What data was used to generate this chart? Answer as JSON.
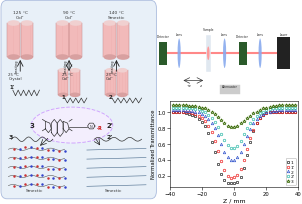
{
  "xlabel": "Z / mm",
  "ylabel": "Normalized Transmittance",
  "xlim": [
    -40,
    40
  ],
  "series": {
    "1": {
      "color": "#222222",
      "marker": "s",
      "label": "1",
      "z": [
        -38,
        -36,
        -34,
        -32,
        -30,
        -28,
        -26,
        -24,
        -22,
        -20,
        -18,
        -16,
        -14,
        -12,
        -10,
        -8,
        -6,
        -4,
        -2,
        0,
        2,
        4,
        6,
        8,
        10,
        12,
        14,
        16,
        18,
        20,
        22,
        24,
        26,
        28,
        30,
        32,
        34,
        36,
        38
      ],
      "T": [
        1.01,
        1.01,
        1.0,
        1.0,
        0.99,
        0.98,
        0.97,
        0.95,
        0.92,
        0.88,
        0.83,
        0.74,
        0.63,
        0.5,
        0.35,
        0.22,
        0.14,
        0.1,
        0.1,
        0.1,
        0.12,
        0.18,
        0.3,
        0.46,
        0.62,
        0.76,
        0.86,
        0.93,
        0.97,
        0.99,
        1.0,
        1.01,
        1.01,
        1.01,
        1.01,
        1.01,
        1.01,
        1.01,
        1.01
      ]
    },
    "1p": {
      "color": "#ee2222",
      "marker": "o",
      "label": "1'",
      "z": [
        -38,
        -36,
        -34,
        -32,
        -30,
        -28,
        -26,
        -24,
        -22,
        -20,
        -18,
        -16,
        -14,
        -12,
        -10,
        -8,
        -6,
        -4,
        -2,
        0,
        2,
        4,
        6,
        8,
        10,
        12,
        14,
        16,
        18,
        20,
        22,
        24,
        26,
        28,
        30,
        32,
        34,
        36,
        38
      ],
      "T": [
        1.01,
        1.01,
        1.01,
        1.01,
        1.0,
        1.0,
        0.99,
        0.98,
        0.96,
        0.93,
        0.89,
        0.83,
        0.75,
        0.64,
        0.51,
        0.38,
        0.27,
        0.2,
        0.17,
        0.18,
        0.21,
        0.28,
        0.4,
        0.54,
        0.67,
        0.78,
        0.87,
        0.93,
        0.97,
        0.99,
        1.0,
        1.01,
        1.01,
        1.01,
        1.01,
        1.01,
        1.01,
        1.01,
        1.01
      ]
    },
    "2": {
      "color": "#3355cc",
      "marker": "^",
      "label": "2",
      "z": [
        -38,
        -36,
        -34,
        -32,
        -30,
        -28,
        -26,
        -24,
        -22,
        -20,
        -18,
        -16,
        -14,
        -12,
        -10,
        -8,
        -6,
        -4,
        -2,
        0,
        2,
        4,
        6,
        8,
        10,
        12,
        14,
        16,
        18,
        20,
        22,
        24,
        26,
        28,
        30,
        32,
        34,
        36,
        38
      ],
      "T": [
        1.03,
        1.03,
        1.03,
        1.03,
        1.02,
        1.02,
        1.02,
        1.01,
        1.0,
        0.98,
        0.96,
        0.92,
        0.87,
        0.8,
        0.71,
        0.6,
        0.5,
        0.43,
        0.4,
        0.4,
        0.43,
        0.5,
        0.6,
        0.7,
        0.79,
        0.87,
        0.92,
        0.96,
        0.98,
        1.0,
        1.01,
        1.02,
        1.02,
        1.03,
        1.03,
        1.03,
        1.03,
        1.03,
        1.03
      ]
    },
    "2p": {
      "color": "#33bbaa",
      "marker": "o",
      "label": "2'",
      "z": [
        -38,
        -36,
        -34,
        -32,
        -30,
        -28,
        -26,
        -24,
        -22,
        -20,
        -18,
        -16,
        -14,
        -12,
        -10,
        -8,
        -6,
        -4,
        -2,
        0,
        2,
        4,
        6,
        8,
        10,
        12,
        14,
        16,
        18,
        20,
        22,
        24,
        26,
        28,
        30,
        32,
        34,
        36,
        38
      ],
      "T": [
        1.06,
        1.06,
        1.06,
        1.06,
        1.05,
        1.05,
        1.05,
        1.04,
        1.04,
        1.02,
        1.0,
        0.97,
        0.93,
        0.88,
        0.81,
        0.73,
        0.65,
        0.59,
        0.55,
        0.55,
        0.58,
        0.64,
        0.72,
        0.8,
        0.87,
        0.92,
        0.96,
        0.99,
        1.01,
        1.03,
        1.04,
        1.05,
        1.05,
        1.06,
        1.06,
        1.06,
        1.06,
        1.06,
        1.06
      ]
    },
    "3": {
      "color": "#336600",
      "marker": "*",
      "label": "3",
      "z": [
        -38,
        -36,
        -34,
        -32,
        -30,
        -28,
        -26,
        -24,
        -22,
        -20,
        -18,
        -16,
        -14,
        -12,
        -10,
        -8,
        -6,
        -4,
        -2,
        0,
        2,
        4,
        6,
        8,
        10,
        12,
        14,
        16,
        18,
        20,
        22,
        24,
        26,
        28,
        30,
        32,
        34,
        36,
        38
      ],
      "T": [
        1.09,
        1.09,
        1.09,
        1.09,
        1.09,
        1.08,
        1.08,
        1.08,
        1.07,
        1.06,
        1.05,
        1.03,
        1.01,
        0.98,
        0.94,
        0.9,
        0.86,
        0.83,
        0.81,
        0.81,
        0.83,
        0.86,
        0.89,
        0.93,
        0.96,
        0.99,
        1.01,
        1.03,
        1.05,
        1.06,
        1.07,
        1.08,
        1.08,
        1.09,
        1.09,
        1.09,
        1.09,
        1.09,
        1.09
      ]
    }
  },
  "bg_color": "#ffffff"
}
